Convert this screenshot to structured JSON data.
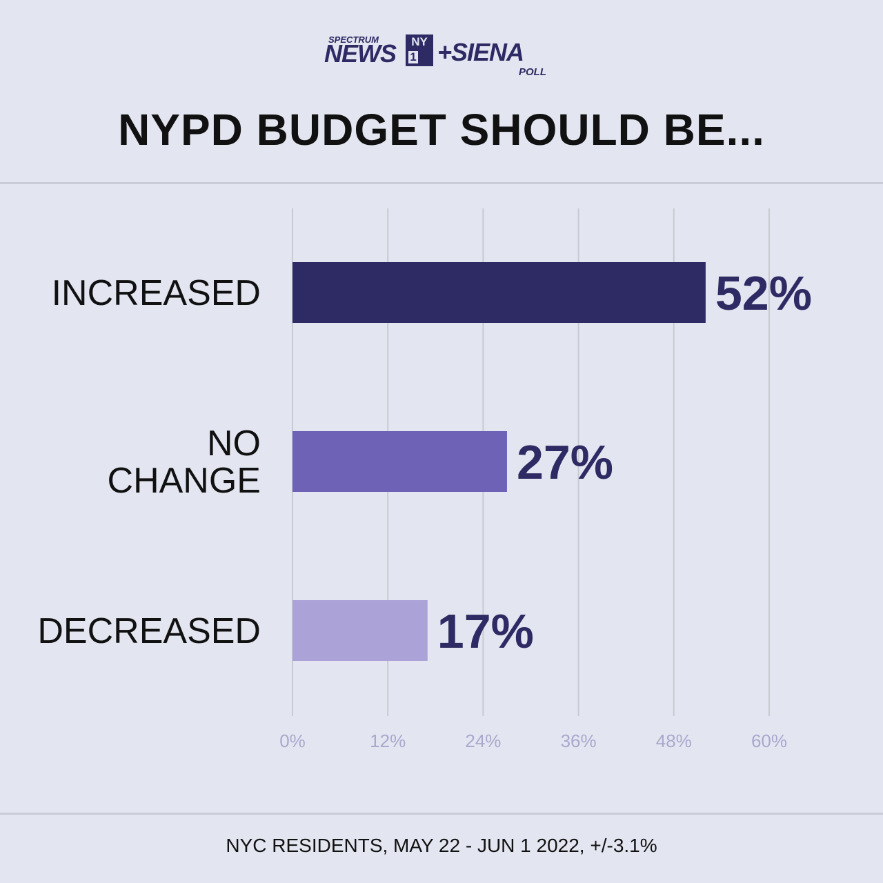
{
  "logo": {
    "spectrum": "SPECTRUM",
    "news": "NEWS",
    "ny": "NY",
    "one": "1",
    "siena": "+SIENA",
    "poll": "POLL"
  },
  "title": "NYPD BUDGET SHOULD BE...",
  "footer": "NYC RESIDENTS, MAY 22 - JUN 1 2022, +/-3.1%",
  "colors": {
    "increased": "#2e2a63",
    "no_change": "#6e62b6",
    "decreased": "#aba3d7",
    "value_text": "#2e2a63",
    "grid": "#c9cad0",
    "tick_text": "#a9a8cd"
  },
  "chart_data": {
    "type": "bar",
    "orientation": "horizontal",
    "categories": [
      [
        "INCREASED"
      ],
      [
        "NO",
        "CHANGE"
      ],
      [
        "DECREASED"
      ]
    ],
    "values": [
      52,
      27,
      17
    ],
    "value_labels": [
      "52%",
      "27%",
      "17%"
    ],
    "xlim": [
      0,
      60
    ],
    "xticks": [
      0,
      12,
      24,
      36,
      48,
      60
    ],
    "xtick_labels": [
      "0%",
      "12%",
      "24%",
      "36%",
      "48%",
      "60%"
    ],
    "grid": true,
    "title": "NYPD BUDGET SHOULD BE...",
    "xlabel": "",
    "ylabel": ""
  }
}
